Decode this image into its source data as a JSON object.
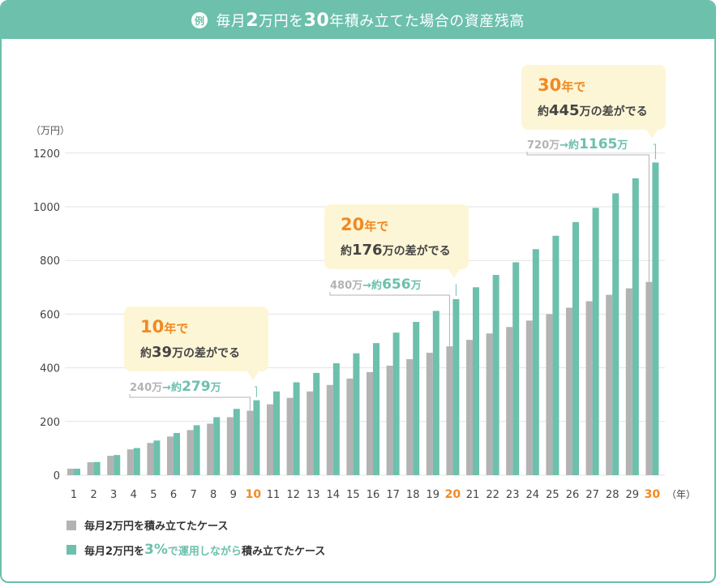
{
  "header": {
    "example_badge": "例",
    "title_parts": [
      "毎月",
      "2",
      "万円を",
      "30",
      "年積み立てた場合の資産残高"
    ]
  },
  "colors": {
    "accent": "#6cc0ac",
    "gray": "#b3b3b3",
    "orange": "#f08a24",
    "callout_bg": "#fdf6d6"
  },
  "chart_data": {
    "type": "bar",
    "title": "毎月2万円を30年積み立てた場合の資産残高",
    "ylabel": "（万円）",
    "xlabel": "（年）",
    "ylim": [
      0,
      1200
    ],
    "yticks": [
      0,
      200,
      400,
      600,
      800,
      1000,
      1200
    ],
    "grid": true,
    "legend_position": "bottom-left",
    "categories": [
      "1",
      "2",
      "3",
      "4",
      "5",
      "6",
      "7",
      "8",
      "9",
      "10",
      "11",
      "12",
      "13",
      "14",
      "15",
      "16",
      "17",
      "18",
      "19",
      "20",
      "21",
      "22",
      "23",
      "24",
      "25",
      "26",
      "27",
      "28",
      "29",
      "30"
    ],
    "highlight_categories": [
      "10",
      "20",
      "30"
    ],
    "series": [
      {
        "name": "毎月2万円を積み立てたケース",
        "color": "#b3b3b3",
        "values": [
          24,
          48,
          72,
          96,
          120,
          144,
          168,
          192,
          216,
          240,
          264,
          288,
          312,
          336,
          360,
          384,
          408,
          432,
          456,
          480,
          504,
          528,
          552,
          576,
          600,
          624,
          648,
          672,
          696,
          720
        ]
      },
      {
        "name": "毎月2万円を3%で運用しながら積み立てたケース",
        "color": "#6cc0ac",
        "values": [
          24,
          49,
          75,
          101,
          129,
          157,
          186,
          216,
          247,
          279,
          312,
          346,
          381,
          417,
          454,
          492,
          531,
          571,
          612,
          656,
          700,
          746,
          793,
          842,
          892,
          943,
          996,
          1050,
          1106,
          1165
        ]
      }
    ],
    "annotations": [
      {
        "year": "10",
        "title_num": "10",
        "title_unit": "年で",
        "line1_pre": "約",
        "line1_num": "39",
        "line1_post": "万の差がでる",
        "compare_from": "240万",
        "arrow": "→",
        "compare_mid": "約",
        "compare_to_num": "279",
        "compare_to_unit": "万"
      },
      {
        "year": "20",
        "title_num": "20",
        "title_unit": "年で",
        "line1_pre": "約",
        "line1_num": "176",
        "line1_post": "万の差がでる",
        "compare_from": "480万",
        "arrow": "→",
        "compare_mid": "約",
        "compare_to_num": "656",
        "compare_to_unit": "万"
      },
      {
        "year": "30",
        "title_num": "30",
        "title_unit": "年で",
        "line1_pre": "約",
        "line1_num": "445",
        "line1_post": "万の差がでる",
        "compare_from": "720万",
        "arrow": "→",
        "compare_mid": "約",
        "compare_to_num": "1165",
        "compare_to_unit": "万"
      }
    ]
  },
  "legend": {
    "item1": "毎月2万円を積み立てたケース",
    "item2_pre": "毎月2万円を",
    "item2_pct": "3%",
    "item2_mid": "で運用しながら",
    "item2_post": "積み立てたケース"
  }
}
